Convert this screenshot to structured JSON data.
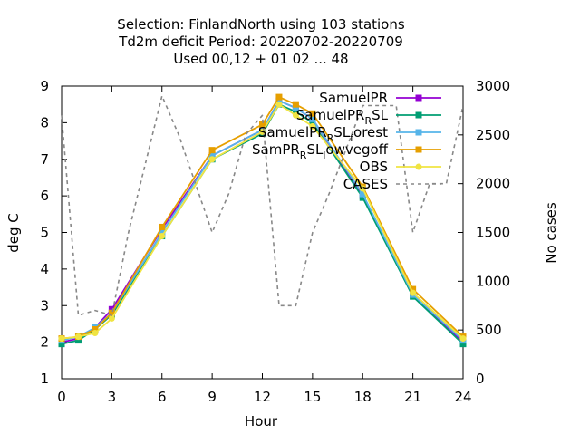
{
  "chart_data": {
    "type": "line",
    "title": [
      "Selection: FinlandNorth using   103 stations",
      "Td2m deficit   Period: 20220702-20220709",
      "Used  00,12  + 01 02 ... 48"
    ],
    "xlabel": "Hour",
    "ylabel": "deg C",
    "y2label": "No cases",
    "xlim": [
      0,
      24
    ],
    "ylim": [
      1,
      9
    ],
    "y2lim": [
      0,
      3000
    ],
    "xticks": [
      "0",
      "3",
      "6",
      "9",
      "12",
      "15",
      "18",
      "21",
      "24"
    ],
    "yticks": [
      "1",
      "2",
      "3",
      "4",
      "5",
      "6",
      "7",
      "8",
      "9"
    ],
    "y2ticks": [
      "0",
      "500",
      "1000",
      "1500",
      "2000",
      "2500",
      "3000"
    ],
    "grid": false,
    "legend_position": "top-right",
    "series": [
      {
        "name": "SamuelPR",
        "legend_main": "SamuelPR",
        "legend_parts": [],
        "color": "#9400d3",
        "marker": "square",
        "axis": "y1",
        "x": [
          0,
          1,
          2,
          3,
          6,
          9,
          12,
          13,
          14,
          15,
          18,
          21,
          24
        ],
        "y": [
          2.0,
          2.1,
          2.4,
          2.9,
          5.1,
          7.1,
          7.8,
          8.6,
          8.4,
          8.1,
          6.0,
          3.3,
          2.0
        ]
      },
      {
        "name": "SamuelPR_R SL",
        "legend_main": "SamuelPR",
        "legend_parts": [
          {
            "t": "R",
            "sub": true
          },
          {
            "t": "SL",
            "sub": false
          }
        ],
        "color": "#009e73",
        "marker": "square",
        "axis": "y1",
        "x": [
          0,
          1,
          2,
          3,
          6,
          9,
          12,
          13,
          14,
          15,
          18,
          21,
          24
        ],
        "y": [
          1.95,
          2.05,
          2.35,
          2.75,
          4.9,
          7.0,
          7.7,
          8.5,
          8.3,
          8.0,
          5.95,
          3.25,
          1.95
        ]
      },
      {
        "name": "SamuelPR_R SL_f orest",
        "legend_main": "SamuelPR",
        "legend_parts": [
          {
            "t": "R",
            "sub": true
          },
          {
            "t": "SL",
            "sub": false
          },
          {
            "t": "f",
            "sub": true
          },
          {
            "t": "orest",
            "sub": false
          }
        ],
        "color": "#56b4e9",
        "marker": "square",
        "axis": "y1",
        "x": [
          0,
          1,
          2,
          3,
          6,
          9,
          12,
          13,
          14,
          15,
          18,
          21,
          24
        ],
        "y": [
          2.05,
          2.15,
          2.4,
          2.8,
          5.0,
          7.1,
          7.8,
          8.6,
          8.4,
          8.1,
          6.05,
          3.3,
          2.05
        ]
      },
      {
        "name": "SamPR_R SL_l owvegoff",
        "legend_main": "SamPR",
        "legend_parts": [
          {
            "t": "R",
            "sub": true
          },
          {
            "t": "SL",
            "sub": false
          },
          {
            "t": "l",
            "sub": true
          },
          {
            "t": "owvegoff",
            "sub": false
          }
        ],
        "color": "#e69f00",
        "marker": "square",
        "axis": "y1",
        "x": [
          0,
          1,
          2,
          3,
          6,
          9,
          12,
          13,
          14,
          15,
          18,
          21,
          24
        ],
        "y": [
          2.1,
          2.15,
          2.35,
          2.8,
          5.15,
          7.25,
          7.95,
          8.7,
          8.5,
          8.25,
          6.25,
          3.45,
          2.15
        ]
      },
      {
        "name": "OBS",
        "legend_main": "OBS",
        "legend_parts": [],
        "color": "#f0e442",
        "marker": "circle",
        "axis": "y1",
        "x": [
          0,
          1,
          2,
          3,
          6,
          9,
          12,
          13,
          14,
          15,
          18,
          21,
          24
        ],
        "y": [
          2.1,
          2.15,
          2.25,
          2.65,
          4.9,
          7.0,
          7.75,
          8.5,
          8.2,
          7.9,
          6.2,
          3.35,
          2.1
        ]
      },
      {
        "name": "CASES",
        "legend_main": "CASES",
        "legend_parts": [],
        "color": "#888888",
        "marker": "none",
        "dashed": true,
        "axis": "y2",
        "x": [
          0,
          1,
          2,
          3,
          4,
          5,
          6,
          7,
          8,
          9,
          10,
          11,
          12,
          13,
          14,
          15,
          16,
          17,
          18,
          19,
          20,
          21,
          22,
          23,
          24
        ],
        "y": [
          2700,
          650,
          700,
          650,
          1500,
          2200,
          2900,
          2500,
          2000,
          1500,
          1900,
          2500,
          2700,
          750,
          750,
          1500,
          1900,
          2350,
          2800,
          2800,
          2800,
          1500,
          2000,
          2000,
          2800
        ]
      }
    ]
  }
}
